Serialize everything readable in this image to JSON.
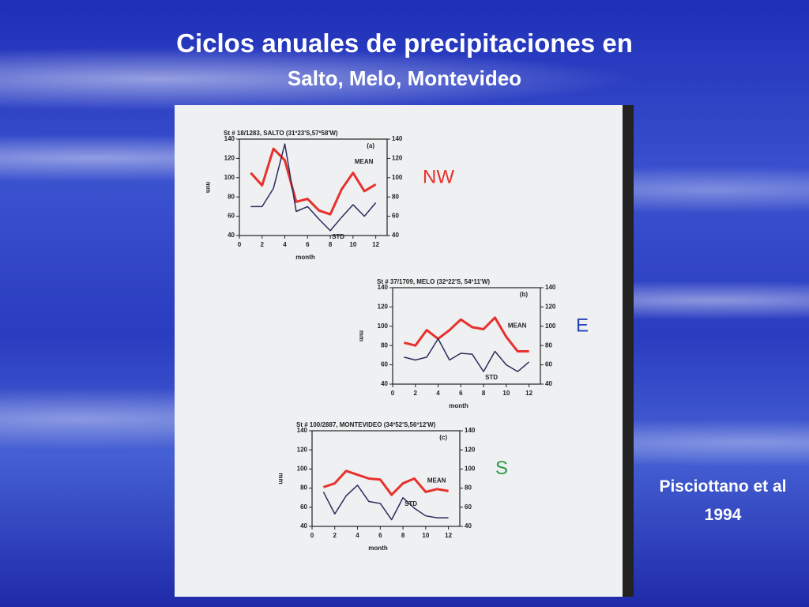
{
  "slide": {
    "title": "Ciclos anuales de precipitaciones en",
    "subtitle": "Salto, Melo, Montevideo",
    "credit": [
      "Pisciottano et al",
      "1994"
    ]
  },
  "chart_data": [
    {
      "type": "line",
      "title": "St  #  18/1283,  SALTO   (31º23'S,57º58'W)",
      "panel": "(a)",
      "ylabel": "mm",
      "xlabel": "month",
      "annotation": "NW",
      "annotation_color": "#e8312c",
      "x": [
        1,
        2,
        3,
        4,
        5,
        6,
        7,
        8,
        9,
        10,
        11,
        12
      ],
      "xlim": [
        0,
        13
      ],
      "xticks": [
        0,
        2,
        4,
        6,
        8,
        10,
        12
      ],
      "ylim": [
        40,
        140
      ],
      "yticks": [
        40,
        60,
        80,
        100,
        120,
        140
      ],
      "y2lim": [
        40,
        140
      ],
      "y2ticks": [
        40,
        60,
        80,
        100,
        120,
        140
      ],
      "series": [
        {
          "name": "MEAN",
          "color": "#e8312c",
          "values": [
            105,
            92,
            130,
            118,
            75,
            78,
            66,
            62,
            88,
            105,
            86,
            93
          ]
        },
        {
          "name": "STD",
          "color": "#2b2d5c",
          "values": [
            70,
            70,
            89,
            135,
            65,
            70,
            57,
            45,
            59,
            72,
            60,
            74
          ]
        }
      ]
    },
    {
      "type": "line",
      "title": "St  #  37/1709,  MELO   (32º22'S,  54º11'W)",
      "panel": "(b)",
      "ylabel": "mm",
      "xlabel": "month",
      "annotation": "E",
      "annotation_color": "#2546b8",
      "x": [
        1,
        2,
        3,
        4,
        5,
        6,
        7,
        8,
        9,
        10,
        11,
        12
      ],
      "xlim": [
        0,
        13
      ],
      "xticks": [
        0,
        2,
        4,
        6,
        8,
        10,
        12
      ],
      "ylim": [
        40,
        140
      ],
      "yticks": [
        40,
        60,
        80,
        100,
        120,
        140
      ],
      "y2lim": [
        40,
        140
      ],
      "y2ticks": [
        40,
        60,
        80,
        100,
        120,
        140
      ],
      "series": [
        {
          "name": "MEAN",
          "color": "#e8312c",
          "values": [
            83,
            80,
            96,
            87,
            96,
            107,
            99,
            97,
            109,
            89,
            74,
            74
          ]
        },
        {
          "name": "STD",
          "color": "#2b2d5c",
          "values": [
            68,
            65,
            68,
            87,
            65,
            72,
            71,
            53,
            74,
            60,
            53,
            63
          ]
        }
      ]
    },
    {
      "type": "line",
      "title": "St  #  100/2887,  MONTEVIDEO   (34º52'S,56º12'W)",
      "panel": "(c)",
      "ylabel": "mm",
      "xlabel": "month",
      "annotation": "S",
      "annotation_color": "#2e9a4e",
      "x": [
        1,
        2,
        3,
        4,
        5,
        6,
        7,
        8,
        9,
        10,
        11,
        12
      ],
      "xlim": [
        0,
        13
      ],
      "xticks": [
        0,
        2,
        4,
        6,
        8,
        10,
        12
      ],
      "ylim": [
        40,
        140
      ],
      "yticks": [
        40,
        60,
        80,
        100,
        120,
        140
      ],
      "y2lim": [
        40,
        140
      ],
      "y2ticks": [
        40,
        60,
        80,
        100,
        120,
        140
      ],
      "series": [
        {
          "name": "MEAN",
          "color": "#e8312c",
          "values": [
            81,
            85,
            98,
            94,
            90,
            89,
            73,
            85,
            90,
            76,
            79,
            77
          ]
        },
        {
          "name": "STD",
          "color": "#2b2d5c",
          "values": [
            76,
            53,
            72,
            83,
            66,
            64,
            47,
            70,
            59,
            51,
            49,
            49
          ]
        }
      ]
    }
  ]
}
